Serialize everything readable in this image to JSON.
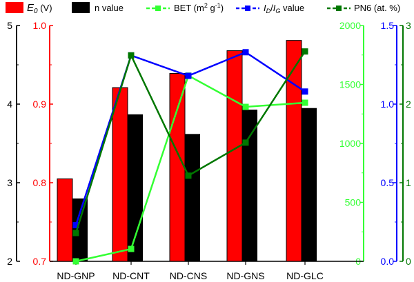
{
  "chart_data": {
    "type": "bar",
    "categories": [
      "ND-GNP",
      "ND-CNT",
      "ND-CNS",
      "ND-GNS",
      "ND-GLC"
    ],
    "legend": [
      {
        "key": "e0",
        "label_main": "E",
        "label_sub": "0",
        "label_rest": " (V)",
        "color": "#ff0000",
        "marker": "bar"
      },
      {
        "key": "n",
        "label": "n value",
        "color": "#000000",
        "marker": "bar"
      },
      {
        "key": "bet",
        "label_prefix": "BET (m",
        "label_sup1": "2",
        "label_mid": " g",
        "label_sup2": "-1",
        "label_suffix": ")",
        "color": "#33ff33",
        "marker": "line"
      },
      {
        "key": "idig",
        "label_i1": "I",
        "label_sub1": "D",
        "label_slash": "/",
        "label_i2": "I",
        "label_sub2": "G",
        "label_suffix": " value",
        "color": "#0000ff",
        "marker": "line"
      },
      {
        "key": "pn6",
        "label": "PN6 (at. %)",
        "color": "#007700",
        "marker": "line"
      }
    ],
    "series": [
      {
        "key": "e0",
        "type": "bar",
        "values": [
          0.805,
          0.921,
          0.939,
          0.968,
          0.981
        ],
        "axis": "e0"
      },
      {
        "key": "n",
        "type": "bar",
        "values": [
          2.8,
          3.87,
          3.62,
          3.93,
          3.95
        ],
        "axis": "n"
      },
      {
        "key": "bet",
        "type": "line",
        "values": [
          0,
          105,
          1575,
          1310,
          1345
        ],
        "axis": "bet"
      },
      {
        "key": "idig",
        "type": "line",
        "values": [
          0.23,
          1.31,
          1.18,
          1.33,
          1.08
        ],
        "axis": "idig"
      },
      {
        "key": "pn6",
        "type": "line",
        "values": [
          0.36,
          2.62,
          1.09,
          1.51,
          2.67
        ],
        "axis": "pn6"
      }
    ],
    "axes": {
      "n": {
        "ylim": [
          2,
          5
        ],
        "ticks": [
          "2",
          "3",
          "4",
          "5"
        ],
        "color": "#000000",
        "side": "left-outer"
      },
      "e0": {
        "ylim": [
          0.7,
          1.0
        ],
        "ticks": [
          "0.7",
          "0.8",
          "0.9",
          "1.0"
        ],
        "color": "#ff0000",
        "side": "left-inner"
      },
      "bet": {
        "ylim": [
          0,
          2000
        ],
        "ticks": [
          "0",
          "500",
          "1000",
          "1500",
          "2000"
        ],
        "color": "#33ff33",
        "side": "right-1"
      },
      "idig": {
        "ylim": [
          0,
          1.5
        ],
        "ticks": [
          "0.0",
          "0.5",
          "1.0",
          "1.5"
        ],
        "color": "#0000ff",
        "side": "right-2"
      },
      "pn6": {
        "ylim": [
          0,
          3
        ],
        "ticks": [
          "0",
          "1",
          "2",
          "3"
        ],
        "color": "#007700",
        "side": "right-3"
      }
    },
    "grid": false,
    "legend_position": "top"
  }
}
